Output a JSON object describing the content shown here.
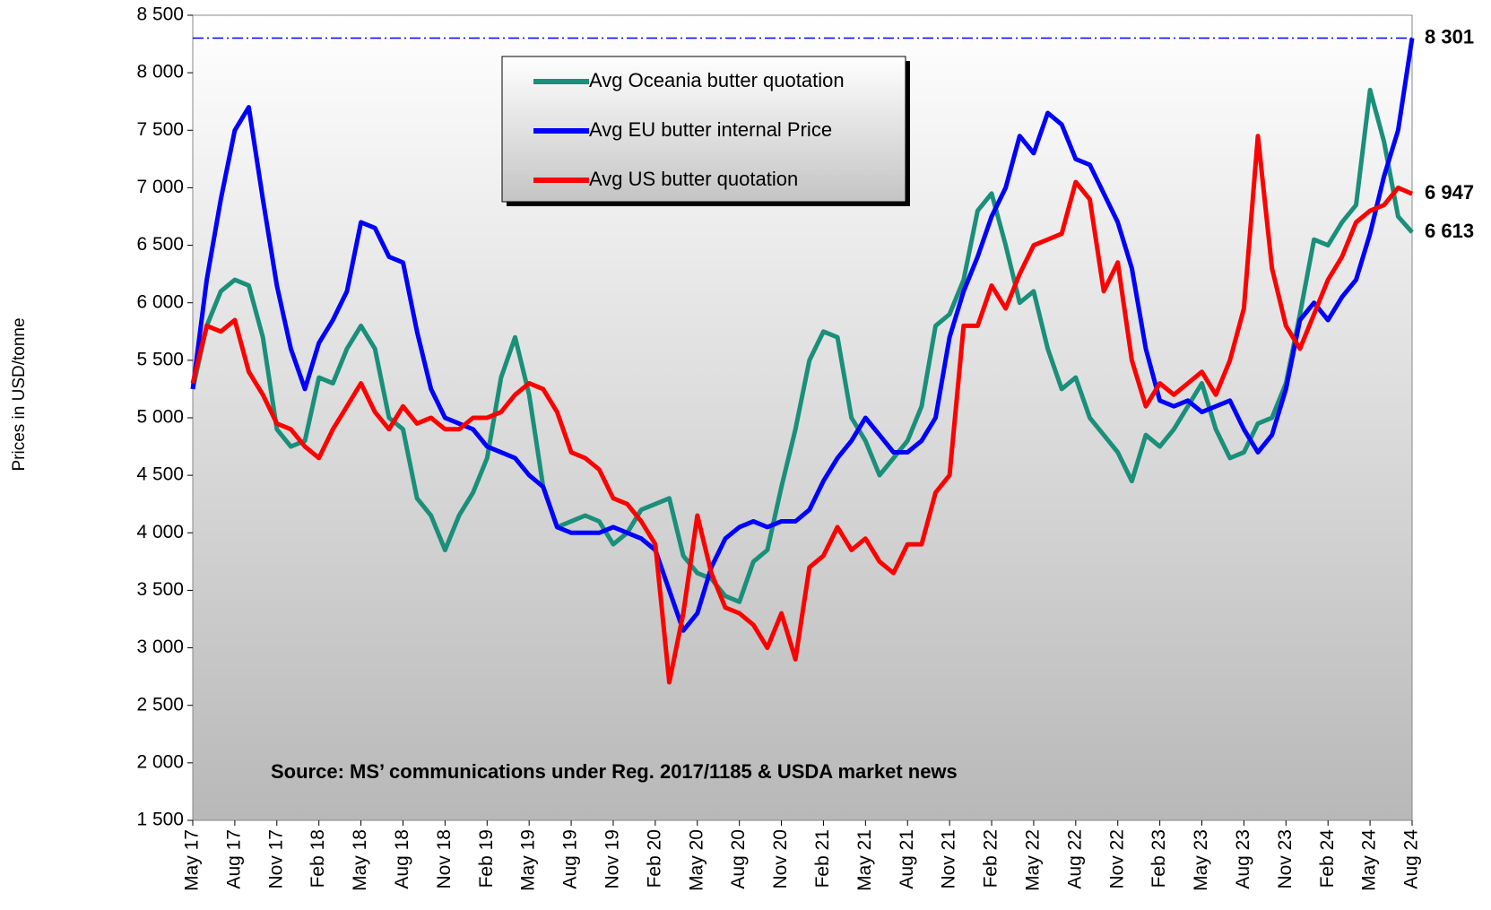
{
  "chart_data": {
    "type": "line",
    "ylabel": "Prices in USD/tonne",
    "annotation": "Source: MS’ communications under Reg. 2017/1185  & USDA market news",
    "legend": "upper center",
    "grid": false,
    "ylim": [
      1500,
      8500
    ],
    "yticks": [
      {
        "value": 1500,
        "label": "1 500"
      },
      {
        "value": 2000,
        "label": "2 000"
      },
      {
        "value": 2500,
        "label": "2 500"
      },
      {
        "value": 3000,
        "label": "3 000"
      },
      {
        "value": 3500,
        "label": "3 500"
      },
      {
        "value": 4000,
        "label": "4 000"
      },
      {
        "value": 4500,
        "label": "4 500"
      },
      {
        "value": 5000,
        "label": "5 000"
      },
      {
        "value": 5500,
        "label": "5 500"
      },
      {
        "value": 6000,
        "label": "6 000"
      },
      {
        "value": 6500,
        "label": "6 500"
      },
      {
        "value": 7000,
        "label": "7 000"
      },
      {
        "value": 7500,
        "label": "7 500"
      },
      {
        "value": 8000,
        "label": "8 000"
      },
      {
        "value": 8500,
        "label": "8 500"
      }
    ],
    "reference_line": {
      "value": 8301,
      "color": "#0000ff"
    },
    "categories": [
      "May 17",
      null,
      null,
      "Aug 17",
      null,
      null,
      "Nov 17",
      null,
      null,
      "Feb 18",
      null,
      null,
      "May 18",
      null,
      null,
      "Aug 18",
      null,
      null,
      "Nov 18",
      null,
      null,
      "Feb 19",
      null,
      null,
      "May 19",
      null,
      null,
      "Aug 19",
      null,
      null,
      "Nov 19",
      null,
      null,
      "Feb 20",
      null,
      null,
      "May 20",
      null,
      null,
      "Aug 20",
      null,
      null,
      "Nov 20",
      null,
      null,
      "Feb 21",
      null,
      null,
      "May 21",
      null,
      null,
      "Aug 21",
      null,
      null,
      "Nov 21",
      null,
      null,
      "Feb 22",
      null,
      null,
      "May 22",
      null,
      null,
      "Aug 22",
      null,
      null,
      "Nov 22",
      null,
      null,
      "Feb 23",
      null,
      null,
      "May 23",
      null,
      null,
      "Aug 23",
      null,
      null,
      "Nov 23",
      null,
      null,
      "Feb 24",
      null,
      null,
      "May 24",
      null,
      null,
      "Aug 24"
    ],
    "series": [
      {
        "name": "Avg Oceania butter quotation",
        "color": "#1a8f7a",
        "end_label": {
          "value": 6613,
          "label": "6 613",
          "color": "#2e9e6e"
        },
        "values": [
          5250,
          5800,
          6100,
          6200,
          6150,
          5700,
          4900,
          4750,
          4800,
          5350,
          5300,
          5600,
          5800,
          5600,
          5000,
          4900,
          4300,
          4150,
          3850,
          4150,
          4350,
          4650,
          5350,
          5700,
          5200,
          4400,
          4050,
          4100,
          4150,
          4100,
          3900,
          4000,
          4200,
          4250,
          4300,
          3800,
          3650,
          3600,
          3450,
          3400,
          3750,
          3850,
          4400,
          4900,
          5500,
          5750,
          5700,
          5000,
          4800,
          4500,
          4650,
          4800,
          5100,
          5800,
          5900,
          6200,
          6800,
          6950,
          6500,
          6000,
          6100,
          5600,
          5250,
          5350,
          5000,
          4850,
          4700,
          4450,
          4850,
          4750,
          4900,
          5100,
          5300,
          4900,
          4650,
          4700,
          4950,
          5000,
          5300,
          5900,
          6550,
          6500,
          6700,
          6850,
          7850,
          7400,
          6750,
          6613
        ]
      },
      {
        "name": "Avg EU butter internal Price",
        "color": "#0000ff",
        "end_label": {
          "value": 8301,
          "label": "8 301",
          "color": "#0000ff"
        },
        "values": [
          5250,
          6200,
          6900,
          7500,
          7700,
          6900,
          6150,
          5600,
          5250,
          5650,
          5850,
          6100,
          6700,
          6650,
          6400,
          6350,
          5750,
          5250,
          5000,
          4950,
          4900,
          4750,
          4700,
          4650,
          4500,
          4400,
          4050,
          4000,
          4000,
          4000,
          4050,
          4000,
          3950,
          3850,
          3500,
          3150,
          3300,
          3700,
          3950,
          4050,
          4100,
          4050,
          4100,
          4100,
          4200,
          4450,
          4650,
          4800,
          5000,
          4850,
          4700,
          4700,
          4800,
          5000,
          5700,
          6100,
          6400,
          6750,
          7000,
          7450,
          7300,
          7650,
          7550,
          7250,
          7200,
          6950,
          6700,
          6300,
          5600,
          5150,
          5100,
          5150,
          5050,
          5100,
          5150,
          4900,
          4700,
          4850,
          5250,
          5850,
          6000,
          5850,
          6050,
          6200,
          6600,
          7100,
          7500,
          8301
        ]
      },
      {
        "name": "Avg US butter quotation",
        "color": "#ff0000",
        "end_label": {
          "value": 6947,
          "label": "6 947",
          "color": "#ff0000"
        },
        "values": [
          5300,
          5800,
          5750,
          5850,
          5400,
          5200,
          4950,
          4900,
          4750,
          4650,
          4900,
          5100,
          5300,
          5050,
          4900,
          5100,
          4950,
          5000,
          4900,
          4900,
          5000,
          5000,
          5050,
          5200,
          5300,
          5250,
          5050,
          4700,
          4650,
          4550,
          4300,
          4250,
          4100,
          3900,
          2700,
          3300,
          4150,
          3650,
          3350,
          3300,
          3200,
          3000,
          3300,
          2900,
          3700,
          3800,
          4050,
          3850,
          3950,
          3750,
          3650,
          3900,
          3900,
          4350,
          4500,
          5800,
          5800,
          6150,
          5950,
          6250,
          6500,
          6550,
          6600,
          7050,
          6900,
          6100,
          6350,
          5500,
          5100,
          5300,
          5200,
          5300,
          5400,
          5200,
          5500,
          5950,
          7450,
          6300,
          5800,
          5600,
          5900,
          6200,
          6400,
          6700,
          6800,
          6850,
          7000,
          6947
        ]
      }
    ]
  }
}
